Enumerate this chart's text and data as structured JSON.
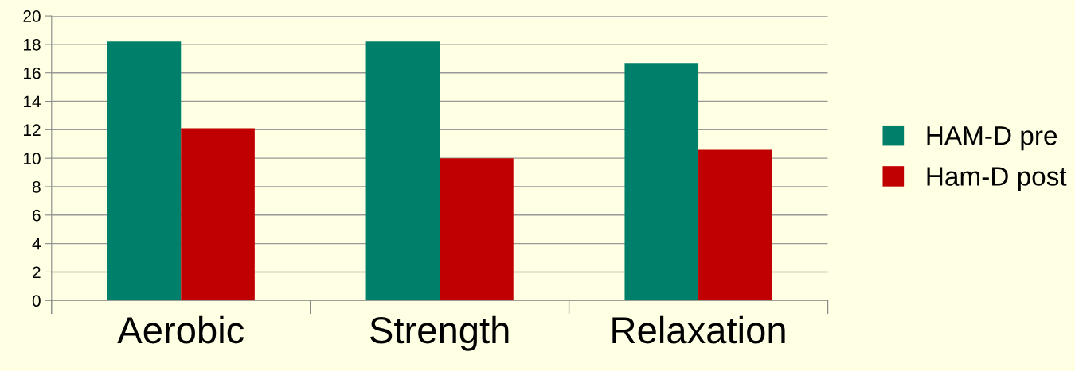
{
  "chart_data": {
    "type": "bar",
    "categories": [
      "Aerobic",
      "Strength",
      "Relaxation"
    ],
    "series": [
      {
        "name": "HAM-D pre",
        "color": "#00806a",
        "values": [
          18.2,
          18.2,
          16.7
        ]
      },
      {
        "name": "Ham-D post",
        "color": "#c00000",
        "values": [
          12.1,
          10.0,
          10.6
        ]
      }
    ],
    "ylim": [
      0,
      20
    ],
    "yticks": [
      0,
      2,
      4,
      6,
      8,
      10,
      12,
      14,
      16,
      18,
      20
    ],
    "grid": "y",
    "legend": "right"
  }
}
